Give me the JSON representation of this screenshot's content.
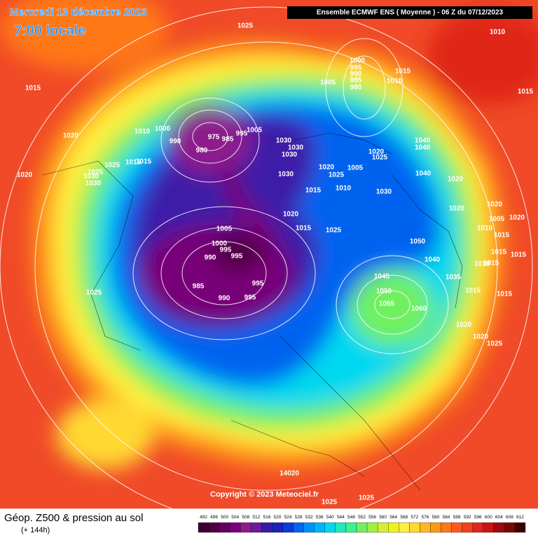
{
  "header": {
    "date": "Mercredi 13 décembre 2023",
    "time": "7:00 locale",
    "run": "Ensemble ECMWF ENS  ( Moyenne )  -  06 Z du 07/12/2023"
  },
  "copyright": "Copyright © 2023 Meteociel.fr",
  "footer": {
    "title": "Géop. Z500 & pression au sol",
    "lead": "(+ 144h)"
  },
  "legend": {
    "values": [
      492,
      496,
      500,
      504,
      508,
      512,
      516,
      520,
      524,
      528,
      532,
      536,
      540,
      544,
      548,
      552,
      556,
      560,
      564,
      568,
      572,
      576,
      580,
      584,
      588,
      592,
      596,
      600,
      604,
      608,
      612
    ],
    "colors": [
      "#3c0030",
      "#500040",
      "#640060",
      "#780078",
      "#8c1c8c",
      "#6e1a9c",
      "#3c1aa8",
      "#2020c0",
      "#0a3cd8",
      "#0064f0",
      "#0090ff",
      "#00b4ff",
      "#00d8f0",
      "#20e8c0",
      "#40f090",
      "#70f060",
      "#a0f040",
      "#d0f030",
      "#f0f020",
      "#fff040",
      "#ffd830",
      "#ffb820",
      "#ff9818",
      "#ff7818",
      "#ff5a1a",
      "#f04020",
      "#e02818",
      "#c81414",
      "#a00a0a",
      "#780808",
      "#3c0000"
    ]
  },
  "isobar_labels": [
    "1025",
    "1010",
    "1015",
    "1015",
    "1010",
    "1015",
    "1000",
    "990",
    "980",
    "975",
    "985",
    "995",
    "1005",
    "1005",
    "1000",
    "995",
    "990",
    "985",
    "980",
    "1015",
    "1010",
    "1030",
    "1030",
    "1030",
    "1020",
    "1025",
    "1025",
    "1030",
    "1040",
    "1040",
    "1040",
    "1020",
    "1020",
    "1005",
    "1010",
    "1015",
    "1020",
    "1025",
    "1030",
    "1030",
    "1020",
    "1025",
    "1015",
    "1020",
    "1005",
    "1000",
    "995",
    "990",
    "985",
    "995",
    "995",
    "990",
    "995",
    "1015",
    "1025",
    "1045",
    "1050",
    "1055",
    "1060",
    "1050",
    "1040",
    "1035",
    "1015",
    "1020",
    "1020",
    "1025",
    "1010",
    "1020",
    "1020",
    "1005",
    "1015",
    "1015",
    "1020",
    "1015",
    "1010",
    "1015",
    "1015",
    "14020",
    "1025",
    "1025",
    "1030",
    "1025"
  ]
}
